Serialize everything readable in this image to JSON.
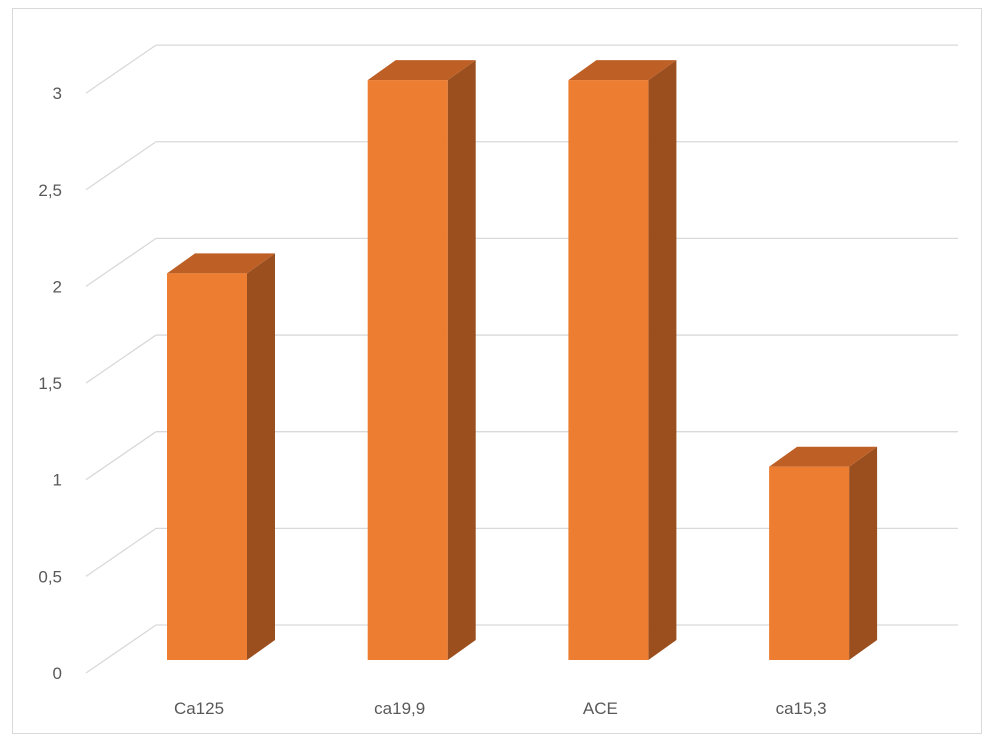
{
  "chart_data": {
    "type": "bar",
    "style": "3d-column",
    "categories": [
      "Ca125",
      "ca19,9",
      "ACE",
      "ca15,3"
    ],
    "values": [
      2,
      3,
      3,
      1
    ],
    "yticks": [
      "0",
      "0,5",
      "1",
      "1,5",
      "2",
      "2,5",
      "3"
    ],
    "ylim": [
      0,
      3.5
    ],
    "grid": true,
    "legend": "none",
    "colors": {
      "front": "#ED7D31",
      "side": "#9C4F1E",
      "top": "#BE6026",
      "grid": "#D9D9D9",
      "text": "#595959"
    }
  }
}
